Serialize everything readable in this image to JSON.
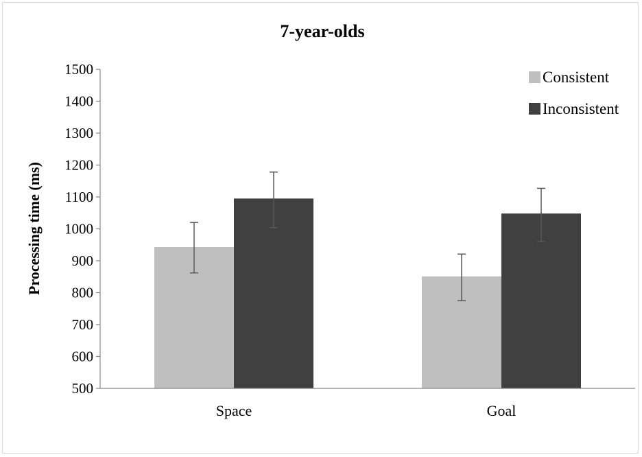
{
  "chart_data": {
    "type": "bar",
    "title": "7-year-olds",
    "xlabel": "",
    "ylabel": "Processing time (ms)",
    "ylim": [
      500,
      1500
    ],
    "yticks": [
      500,
      600,
      700,
      800,
      900,
      1000,
      1100,
      1200,
      1300,
      1400,
      1500
    ],
    "categories": [
      "Space",
      "Goal"
    ],
    "series": [
      {
        "name": "Consistent",
        "color": "#bfbfbf",
        "values": [
          943,
          851
        ],
        "error_low": [
          862,
          775
        ],
        "error_high": [
          1020,
          921
        ]
      },
      {
        "name": "Inconsistent",
        "color": "#404040",
        "values": [
          1095,
          1048
        ],
        "error_low": [
          1004,
          961
        ],
        "error_high": [
          1178,
          1127
        ]
      }
    ],
    "legend": "top-right",
    "grid": false
  }
}
